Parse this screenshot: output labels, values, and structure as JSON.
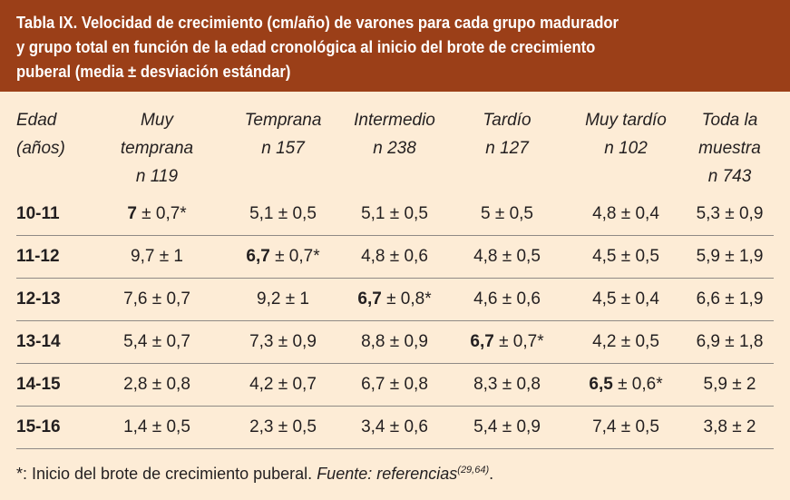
{
  "title": {
    "lines": [
      "Tabla IX.  Velocidad de crecimiento (cm/año) de varones para cada grupo madurador",
      "y grupo total en función de la edad cronológica al inicio del brote de crecimiento",
      "puberal (media ± desviación estándar)"
    ]
  },
  "columns": [
    [
      "Edad",
      "(años)"
    ],
    [
      "Muy",
      "temprana",
      "n 119"
    ],
    [
      "Temprana",
      "n 157"
    ],
    [
      "Intermedio",
      "n 238"
    ],
    [
      "Tardío",
      "n 127"
    ],
    [
      "Muy tardío",
      "n 102"
    ],
    [
      "Toda la",
      "muestra",
      "n 743"
    ]
  ],
  "rows": [
    {
      "age": "10-11",
      "cells": [
        {
          "mean": "7",
          "rest": " ± 0,7*",
          "bold": true
        },
        {
          "mean": "5,1",
          "rest": " ± 0,5"
        },
        {
          "mean": "5,1",
          "rest": " ± 0,5"
        },
        {
          "mean": "5",
          "rest": " ± 0,5"
        },
        {
          "mean": "4,8",
          "rest": " ± 0,4"
        },
        {
          "mean": "5,3",
          "rest": " ± 0,9"
        }
      ]
    },
    {
      "age": "11-12",
      "cells": [
        {
          "mean": "9,7",
          "rest": " ± 1"
        },
        {
          "mean": "6,7",
          "rest": " ± 0,7*",
          "bold": true
        },
        {
          "mean": "4,8",
          "rest": " ± 0,6"
        },
        {
          "mean": "4,8",
          "rest": " ± 0,5"
        },
        {
          "mean": "4,5",
          "rest": " ± 0,5"
        },
        {
          "mean": "5,9",
          "rest": " ± 1,9"
        }
      ]
    },
    {
      "age": "12-13",
      "cells": [
        {
          "mean": "7,6",
          "rest": " ± 0,7"
        },
        {
          "mean": "9,2",
          "rest": " ± 1"
        },
        {
          "mean": "6,7",
          "rest": " ± 0,8*",
          "bold": true
        },
        {
          "mean": "4,6",
          "rest": " ± 0,6"
        },
        {
          "mean": "4,5",
          "rest": " ± 0,4"
        },
        {
          "mean": "6,6",
          "rest": " ± 1,9"
        }
      ]
    },
    {
      "age": "13-14",
      "cells": [
        {
          "mean": "5,4",
          "rest": " ± 0,7"
        },
        {
          "mean": "7,3",
          "rest": " ± 0,9"
        },
        {
          "mean": "8,8",
          "rest": " ± 0,9"
        },
        {
          "mean": "6,7",
          "rest": " ± 0,7*",
          "bold": true
        },
        {
          "mean": "4,2",
          "rest": " ± 0,5"
        },
        {
          "mean": "6,9",
          "rest": " ± 1,8"
        }
      ]
    },
    {
      "age": "14-15",
      "cells": [
        {
          "mean": "2,8",
          "rest": " ± 0,8"
        },
        {
          "mean": "4,2",
          "rest": " ± 0,7"
        },
        {
          "mean": "6,7",
          "rest": " ± 0,8"
        },
        {
          "mean": "8,3",
          "rest": " ± 0,8"
        },
        {
          "mean": "6,5",
          "rest": " ± 0,6*",
          "bold": true
        },
        {
          "mean": "5,9",
          "rest": " ± 2"
        }
      ]
    },
    {
      "age": "15-16",
      "cells": [
        {
          "mean": "1,4",
          "rest": " ± 0,5"
        },
        {
          "mean": "2,3",
          "rest": " ± 0,5"
        },
        {
          "mean": "3,4",
          "rest": " ± 0,6"
        },
        {
          "mean": "5,4",
          "rest": " ± 0,9"
        },
        {
          "mean": "7,4",
          "rest": " ± 0,5"
        },
        {
          "mean": "3,8",
          "rest": " ± 2"
        }
      ]
    }
  ],
  "footnote": {
    "text": "*: Inicio del brote de crecimiento puberal.  ",
    "source": "Fuente: referencias",
    "refs": "(29,64)",
    "end": "."
  }
}
